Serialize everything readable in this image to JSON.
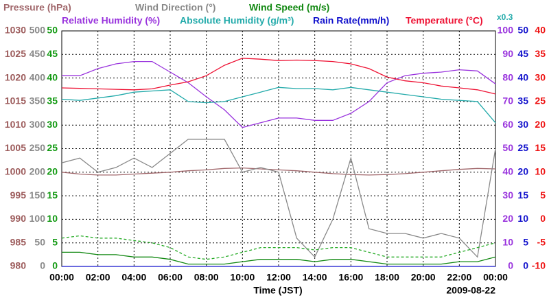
{
  "chart_data": {
    "type": "line",
    "x_label": "Time (JST)",
    "date": "2009-08-22",
    "grid": true,
    "x": [
      0,
      1,
      2,
      3,
      4,
      5,
      6,
      7,
      8,
      9,
      10,
      11,
      12,
      13,
      14,
      15,
      16,
      17,
      18,
      19,
      20,
      21,
      22,
      23,
      24
    ],
    "xlim": [
      0,
      24
    ],
    "xticks": [
      {
        "value": 0,
        "label": "00:00"
      },
      {
        "value": 2,
        "label": "02:00"
      },
      {
        "value": 4,
        "label": "04:00"
      },
      {
        "value": 6,
        "label": "06:00"
      },
      {
        "value": 8,
        "label": "08:00"
      },
      {
        "value": 10,
        "label": "10:00"
      },
      {
        "value": 12,
        "label": "12:00"
      },
      {
        "value": 14,
        "label": "14:00"
      },
      {
        "value": 16,
        "label": "16:00"
      },
      {
        "value": 18,
        "label": "18:00"
      },
      {
        "value": 20,
        "label": "20:00"
      },
      {
        "value": 22,
        "label": "22:00"
      },
      {
        "value": 24,
        "label": "00:00"
      }
    ],
    "axes": [
      {
        "side": "left",
        "color": "#9c5b5b",
        "ylim": [
          980,
          1030
        ],
        "yticks": [
          980,
          985,
          990,
          995,
          1000,
          1005,
          1010,
          1015,
          1020,
          1025,
          1030
        ],
        "series": [
          {
            "name": "Pressure (hPa)",
            "color": "#a0666a",
            "values": [
              1000.0,
              999.6,
              999.4,
              999.4,
              999.6,
              999.8,
              1000.0,
              1000.3,
              1000.5,
              1000.8,
              1000.9,
              1000.7,
              1000.5,
              1000.3,
              1000.0,
              999.7,
              999.5,
              999.4,
              999.5,
              999.7,
              1000.0,
              1000.3,
              1000.6,
              1000.8,
              1000.7
            ]
          }
        ]
      },
      {
        "side": "left",
        "color": "#888888",
        "ylim": [
          0,
          500
        ],
        "yticks": [
          0,
          50,
          100,
          150,
          200,
          250,
          300,
          350,
          400,
          450,
          500
        ],
        "series": [
          {
            "name": "Wind Direction (°)",
            "color": "#888888",
            "values": [
              220,
              230,
              200,
              210,
              230,
              210,
              240,
              270,
              270,
              270,
              200,
              210,
              200,
              60,
              20,
              100,
              230,
              80,
              70,
              70,
              60,
              70,
              60,
              20,
              250
            ]
          }
        ]
      },
      {
        "side": "left",
        "color": "#119911",
        "ylim": [
          0,
          50
        ],
        "yticks": [
          0,
          5,
          10,
          15,
          20,
          25,
          30,
          35,
          40,
          45,
          50
        ],
        "series": [
          {
            "name": "Wind Speed (m/s)",
            "color": "#118811",
            "values": [
              3,
              3,
              2.5,
              2.5,
              2,
              2,
              1.5,
              0.5,
              0.5,
              0.5,
              1,
              1.5,
              1.5,
              1.5,
              1,
              1.5,
              1.5,
              1,
              0.5,
              0.5,
              0.5,
              0.5,
              1,
              1,
              2
            ]
          },
          {
            "color": "#22aa22",
            "dashed": true,
            "values": [
              6,
              6.5,
              6,
              6,
              5.5,
              5,
              4,
              2,
              1.5,
              2,
              3,
              4,
              4,
              4,
              3.5,
              4,
              4,
              3,
              2,
              2,
              2,
              2,
              3,
              4,
              5
            ]
          }
        ]
      },
      {
        "side": "right",
        "color": "#9933dd",
        "ylim": [
          0,
          100
        ],
        "yticks": [
          0,
          10,
          20,
          30,
          40,
          50,
          60,
          70,
          80,
          90,
          100
        ],
        "series": [
          {
            "name": "Relative Humidity (%)",
            "color": "#9933dd",
            "values": [
              81,
              81,
              84,
              86,
              87,
              87,
              82.5,
              78,
              72,
              66.5,
              59,
              61,
              63,
              63,
              62,
              62,
              65,
              70,
              78,
              81,
              82,
              82.5,
              83.5,
              83,
              77.5
            ]
          },
          {
            "name": "Absolute Humidity (g/m³)",
            "scale_label": "x0.3",
            "color": "#22aaaa",
            "values": [
              71,
              70.5,
              71.5,
              72.5,
              74,
              74.5,
              75,
              70,
              69.5,
              70,
              72,
              74,
              76,
              75.5,
              75.5,
              75,
              76,
              75,
              74,
              73,
              72,
              71,
              70.5,
              70,
              61
            ]
          }
        ]
      },
      {
        "side": "right",
        "color": "#1111cc",
        "ylim": [
          0,
          50
        ],
        "yticks": [
          0,
          5,
          10,
          15,
          20,
          25,
          30,
          35,
          40,
          45,
          50
        ],
        "series": [
          {
            "name": "Rain Rate(mm/h)",
            "color": "#1111cc",
            "values": [
              0,
              0,
              0,
              0,
              0,
              0,
              0,
              0,
              0,
              0,
              0,
              0,
              0,
              0,
              0,
              0,
              0,
              0,
              0,
              0,
              0,
              0,
              0,
              0,
              0
            ]
          }
        ]
      },
      {
        "side": "right",
        "color": "#ee1111",
        "ylim": [
          -10,
          40
        ],
        "yticks": [
          -10,
          -5,
          0,
          5,
          10,
          15,
          20,
          25,
          30,
          35,
          40
        ],
        "series": [
          {
            "name": "Temperature (°C)",
            "color": "#ee1133",
            "values": [
              27.9,
              27.8,
              27.7,
              27.6,
              27.5,
              27.7,
              28.5,
              29.2,
              30.5,
              32.7,
              34.2,
              34.0,
              33.7,
              33.8,
              33.7,
              33.5,
              33.0,
              32.0,
              30.2,
              29.4,
              29.0,
              28.3,
              27.9,
              27.5,
              26.6
            ]
          }
        ]
      }
    ]
  }
}
